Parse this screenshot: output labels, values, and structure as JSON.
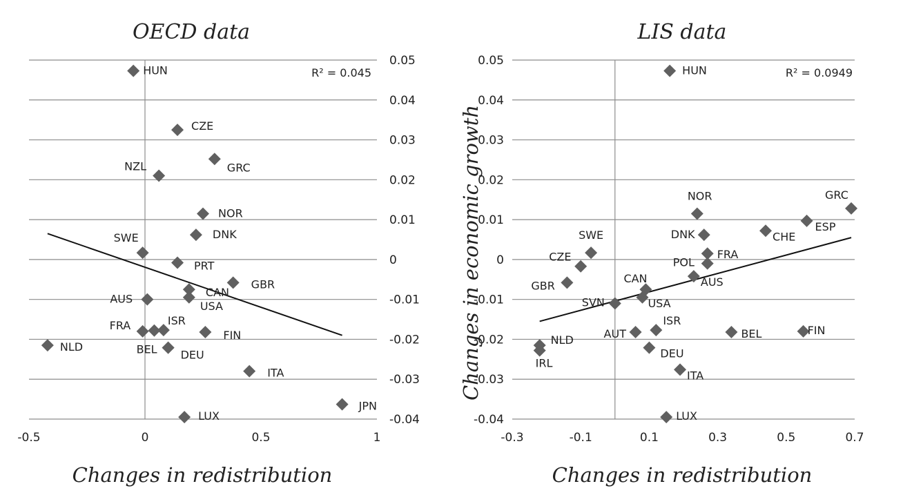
{
  "y_axis_title": "Changes in economic growth",
  "chart_data": [
    {
      "type": "scatter",
      "title": "OECD data",
      "xlabel": "Changes in redistribution",
      "xlim": [
        -0.5,
        1
      ],
      "ylim": [
        -0.04,
        0.05
      ],
      "x_ticks": [
        "-0.5",
        "0",
        "0.5",
        "1"
      ],
      "y_ticks": [
        "0.05",
        "0.04",
        "0.03",
        "0.02",
        "0.01",
        "0",
        "-0.01",
        "-0.02",
        "-0.03",
        "-0.04"
      ],
      "y_tick_side": "right",
      "grid": "horizontal",
      "r2_text": "R² = 0.045",
      "trendline": {
        "x1": -0.42,
        "y1": 0.0065,
        "x2": 0.85,
        "y2": -0.019
      },
      "points": [
        {
          "label": "HUN",
          "x": -0.05,
          "y": 0.0473
        },
        {
          "label": "CZE",
          "x": 0.14,
          "y": 0.0325
        },
        {
          "label": "GRC",
          "x": 0.3,
          "y": 0.0252
        },
        {
          "label": "NZL",
          "x": 0.06,
          "y": 0.021
        },
        {
          "label": "NOR",
          "x": 0.25,
          "y": 0.0115
        },
        {
          "label": "DNK",
          "x": 0.22,
          "y": 0.0062
        },
        {
          "label": "SWE",
          "x": -0.01,
          "y": 0.0017
        },
        {
          "label": "PRT",
          "x": 0.14,
          "y": -0.0008
        },
        {
          "label": "GBR",
          "x": 0.38,
          "y": -0.0058
        },
        {
          "label": "CAN",
          "x": 0.19,
          "y": -0.0075
        },
        {
          "label": "AUS",
          "x": 0.01,
          "y": -0.01
        },
        {
          "label": "USA",
          "x": 0.19,
          "y": -0.0095
        },
        {
          "label": "FRA",
          "x": -0.01,
          "y": -0.018
        },
        {
          "label": "",
          "x": 0.04,
          "y": -0.0178
        },
        {
          "label": "ISR",
          "x": 0.08,
          "y": -0.0177
        },
        {
          "label": "FIN",
          "x": 0.26,
          "y": -0.0182
        },
        {
          "label": "NLD",
          "x": -0.42,
          "y": -0.0215
        },
        {
          "label": "BEL",
          "x": 0.1,
          "y": -0.0221
        },
        {
          "label": "DEU",
          "x": 0.1,
          "y": -0.0221
        },
        {
          "label": "ITA",
          "x": 0.45,
          "y": -0.028
        },
        {
          "label": "JPN",
          "x": 0.85,
          "y": -0.0363
        },
        {
          "label": "LUX",
          "x": 0.17,
          "y": -0.0395
        }
      ]
    },
    {
      "type": "scatter",
      "title": "LIS data",
      "xlabel": "Changes in redistribution",
      "xlim": [
        -0.3,
        0.7
      ],
      "ylim": [
        -0.04,
        0.05
      ],
      "x_ticks": [
        "-0.3",
        "-0.1",
        "0.1",
        "0.3",
        "0.5",
        "0.7"
      ],
      "y_ticks": [
        "0.05",
        "0.04",
        "0.03",
        "0.02",
        "0.01",
        "0",
        "-0.01",
        "-0.02",
        "-0.03",
        "-0.04"
      ],
      "y_tick_side": "left",
      "grid": "horizontal",
      "r2_text": "R² = 0.0949",
      "trendline": {
        "x1": -0.22,
        "y1": -0.0155,
        "x2": 0.69,
        "y2": 0.0055
      },
      "points": [
        {
          "label": "HUN",
          "x": 0.16,
          "y": 0.0473
        },
        {
          "label": "GRC",
          "x": 0.69,
          "y": 0.0128
        },
        {
          "label": "NOR",
          "x": 0.24,
          "y": 0.0115
        },
        {
          "label": "ESP",
          "x": 0.56,
          "y": 0.0097
        },
        {
          "label": "CHE",
          "x": 0.44,
          "y": 0.0072
        },
        {
          "label": "DNK",
          "x": 0.26,
          "y": 0.0062
        },
        {
          "label": "SWE",
          "x": -0.07,
          "y": 0.0017
        },
        {
          "label": "FRA",
          "x": 0.27,
          "y": 0.0015
        },
        {
          "label": "CZE",
          "x": -0.1,
          "y": -0.0017
        },
        {
          "label": "POL",
          "x": 0.27,
          "y": -0.001
        },
        {
          "label": "GBR",
          "x": -0.14,
          "y": -0.0058
        },
        {
          "label": "AUS",
          "x": 0.23,
          "y": -0.0042
        },
        {
          "label": "CAN",
          "x": 0.09,
          "y": -0.0075
        },
        {
          "label": "USA",
          "x": 0.08,
          "y": -0.0095
        },
        {
          "label": "SVN",
          "x": 0.0,
          "y": -0.011
        },
        {
          "label": "ISR",
          "x": 0.12,
          "y": -0.0177
        },
        {
          "label": "AUT",
          "x": 0.06,
          "y": -0.0182
        },
        {
          "label": "BEL",
          "x": 0.34,
          "y": -0.0182
        },
        {
          "label": "FIN",
          "x": 0.55,
          "y": -0.018
        },
        {
          "label": "NLD",
          "x": -0.22,
          "y": -0.0215
        },
        {
          "label": "IRL",
          "x": -0.22,
          "y": -0.0228
        },
        {
          "label": "DEU",
          "x": 0.1,
          "y": -0.0221
        },
        {
          "label": "ITA",
          "x": 0.19,
          "y": -0.0276
        },
        {
          "label": "LUX",
          "x": 0.15,
          "y": -0.0395
        }
      ]
    }
  ]
}
